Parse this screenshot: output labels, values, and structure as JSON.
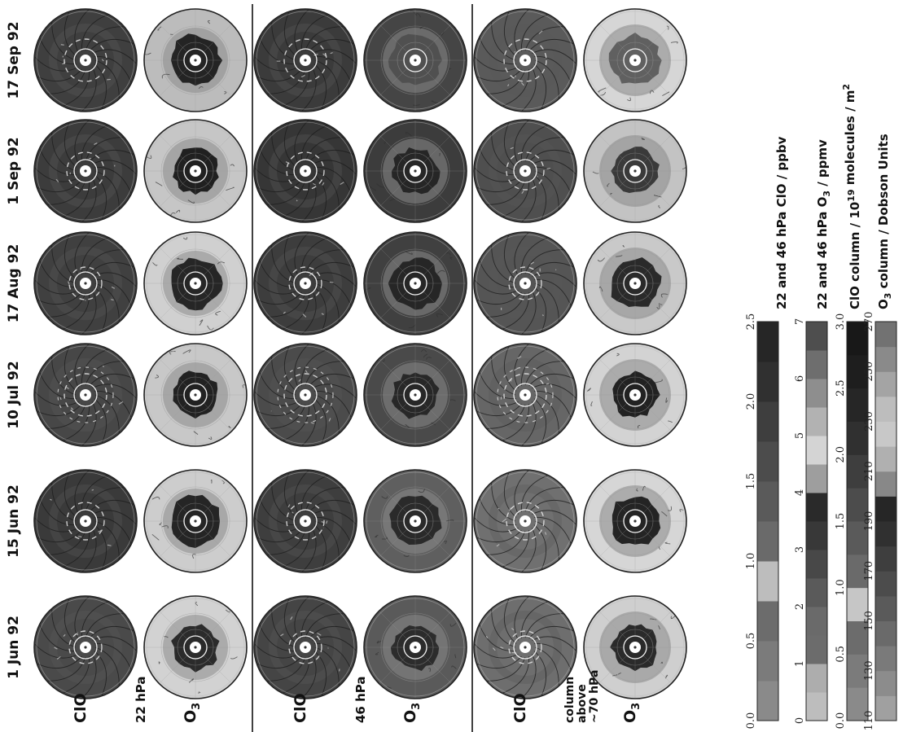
{
  "figure": {
    "dates": [
      "1 Jun 92",
      "15 Jun 92",
      "10 Jul 92",
      "17 Aug 92",
      "1 Sep 92",
      "17 Sep 92"
    ],
    "groups": [
      {
        "species_a": "ClO",
        "level": "22 hPa",
        "species_b": "O3",
        "level_lines": [
          "22 hPa"
        ]
      },
      {
        "species_a": "ClO",
        "level": "46 hPa",
        "species_b": "O3",
        "level_lines": [
          "46 hPa"
        ]
      },
      {
        "species_a": "ClO",
        "level": "column above ~70 hPa",
        "species_b": "O3",
        "level_lines": [
          "column",
          "above",
          "~70 hPa"
        ]
      }
    ],
    "map_shades": {
      "clo_22": [
        "#4a4a4a",
        "#3a3a3a",
        "#474747",
        "#404040",
        "#3c3c3c",
        "#3f3f3f"
      ],
      "o3_22_outer": [
        "#d2d2d2",
        "#cdcdcd",
        "#c8c8c8",
        "#d0d0d0",
        "#c6c6c6",
        "#bcbcbc"
      ],
      "o3_22_core": [
        "#2b2b2b",
        "#252525",
        "#222222",
        "#262626",
        "#202020",
        "#242424"
      ],
      "clo_46": [
        "#454545",
        "#3e3e3e",
        "#4b4b4b",
        "#3d3d3d",
        "#363636",
        "#3b3b3b"
      ],
      "o3_46_outer": [
        "#5a5a5a",
        "#5f5f5f",
        "#4a4a4a",
        "#404040",
        "#3c3c3c",
        "#454545"
      ],
      "o3_46_core": [
        "#2c2c2c",
        "#2a2a2a",
        "#282828",
        "#262626",
        "#262626",
        "#505050"
      ],
      "clo_col": [
        "#6e6e6e",
        "#707070",
        "#666666",
        "#555555",
        "#4f4f4f",
        "#5a5a5a"
      ],
      "o3_col_outer": [
        "#cfcfcf",
        "#d6d6d6",
        "#d3d3d3",
        "#c9c9c9",
        "#c3c3c3",
        "#d6d6d6"
      ],
      "o3_col_core": [
        "#2a2a2a",
        "#242424",
        "#222222",
        "#2a2a2a",
        "#3a3a3a",
        "#606060"
      ]
    }
  },
  "legend": {
    "bars": [
      {
        "title": "22 and 46 hPa ClO / ppbv",
        "ticks": [
          "0.0",
          "0.5",
          "1.0",
          "1.5",
          "2.0",
          "2.5"
        ],
        "colors": [
          "#8a8a8a",
          "#7b7b7b",
          "#6c6c6c",
          "#bdbdbd",
          "#6a6a6a",
          "#5a5a5a",
          "#4c4c4c",
          "#3e3e3e",
          "#303030",
          "#262626"
        ]
      },
      {
        "title": "22 and 46 hPa O3 / ppmv",
        "ticks": [
          "0",
          "1",
          "2",
          "3",
          "4",
          "5",
          "6",
          "7"
        ],
        "colors": [
          "#bdbdbd",
          "#adadad",
          "#6c6c6c",
          "#6a6a6a",
          "#5a5a5a",
          "#484848",
          "#383838",
          "#2a2a2a",
          "#9e9e9e",
          "#d4d4d4",
          "#b2b2b2",
          "#8e8e8e",
          "#6e6e6e",
          "#4e4e4e"
        ]
      },
      {
        "title": "ClO column / 10^19 molecules / m^2",
        "ticks": [
          "0.0",
          "0.5",
          "1.0",
          "1.5",
          "2.0",
          "2.5",
          "3.0"
        ],
        "colors": [
          "#8a8a8a",
          "#7b7b7b",
          "#6c6c6c",
          "#c6c6c6",
          "#6a6a6a",
          "#5a5a5a",
          "#4c4c4c",
          "#3e3e3e",
          "#303030",
          "#262626",
          "#1e1e1e",
          "#181818"
        ]
      },
      {
        "title": "O3 column / Dobson Units",
        "ticks": [
          "110",
          "130",
          "150",
          "170",
          "190",
          "210",
          "230",
          "250",
          "270"
        ],
        "colors": [
          "#a0a0a0",
          "#8c8c8c",
          "#7a7a7a",
          "#6a6a6a",
          "#5a5a5a",
          "#4c4c4c",
          "#3e3e3e",
          "#303030",
          "#262626",
          "#888888",
          "#b0b0b0",
          "#c8c8c8",
          "#bdbdbd",
          "#a4a4a4",
          "#8a8a8a",
          "#727272"
        ]
      }
    ]
  }
}
